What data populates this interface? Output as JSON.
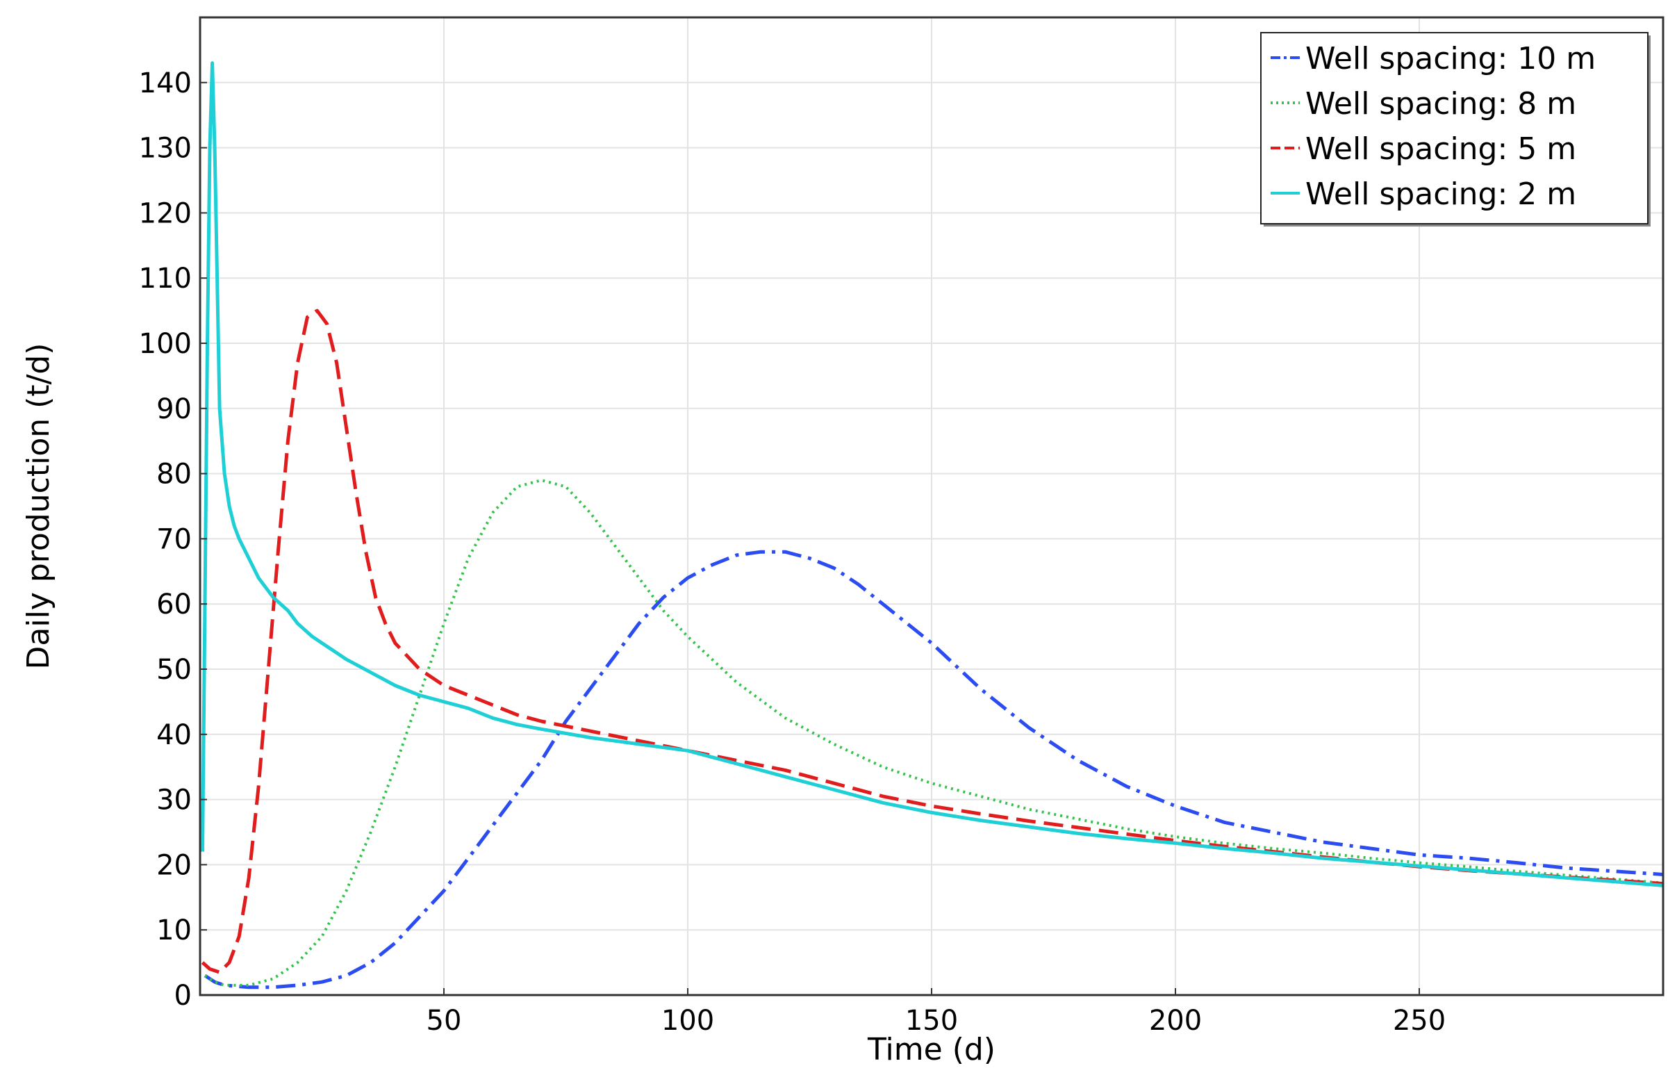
{
  "chart_data": {
    "type": "line",
    "xlabel": "Time (d)",
    "ylabel": "Daily production (t/d)",
    "xlim": [
      0,
      300
    ],
    "ylim": [
      0,
      150
    ],
    "xticks": [
      50,
      100,
      150,
      200,
      250
    ],
    "yticks": [
      0,
      10,
      20,
      30,
      40,
      50,
      60,
      70,
      80,
      90,
      100,
      110,
      120,
      130,
      140
    ],
    "grid": true,
    "legend_position": "top-right",
    "series": [
      {
        "name": "Well spacing: 10 m",
        "color": "#2b4cf0",
        "dash": "dash-dot",
        "x": [
          1,
          3,
          5,
          10,
          15,
          20,
          25,
          30,
          35,
          40,
          45,
          50,
          55,
          60,
          65,
          70,
          75,
          80,
          85,
          90,
          95,
          100,
          105,
          110,
          115,
          118,
          120,
          125,
          130,
          135,
          140,
          145,
          150,
          160,
          170,
          180,
          190,
          200,
          210,
          220,
          230,
          240,
          250,
          260,
          270,
          280,
          290,
          300
        ],
        "y": [
          3,
          2,
          1.5,
          1.2,
          1.2,
          1.5,
          2,
          3,
          5,
          8,
          12,
          16,
          21,
          26,
          31,
          36,
          42,
          47,
          52,
          57,
          61,
          64,
          66,
          67.5,
          68,
          68,
          68,
          67,
          65.5,
          63,
          60,
          57,
          54,
          47,
          41,
          36,
          32,
          29,
          26.5,
          25,
          23.5,
          22.5,
          21.5,
          21,
          20.3,
          19.5,
          19,
          18.5
        ]
      },
      {
        "name": "Well spacing: 8 m",
        "color": "#33c24a",
        "dash": "dotted",
        "x": [
          1,
          3,
          5,
          10,
          15,
          20,
          25,
          30,
          35,
          40,
          45,
          50,
          55,
          60,
          65,
          70,
          75,
          80,
          85,
          90,
          95,
          100,
          110,
          120,
          130,
          140,
          150,
          160,
          170,
          180,
          190,
          200,
          210,
          220,
          230,
          240,
          250,
          260,
          270,
          280,
          290,
          300
        ],
        "y": [
          3,
          2,
          1.5,
          1.5,
          2.5,
          5,
          9,
          16,
          25,
          35,
          46,
          57,
          67,
          74,
          78,
          79,
          78,
          74,
          69,
          64,
          59,
          55,
          48,
          42.5,
          38.5,
          35,
          32.5,
          30.5,
          28.5,
          27,
          25.5,
          24.3,
          23.3,
          22.5,
          21.8,
          21,
          20.3,
          19.7,
          19,
          18.4,
          17.8,
          17.2
        ]
      },
      {
        "name": "Well spacing: 5 m",
        "color": "#e01c1c",
        "dash": "dashed",
        "x": [
          0.5,
          2,
          4,
          6,
          8,
          10,
          12,
          14,
          16,
          18,
          20,
          22,
          24,
          26,
          28,
          30,
          32,
          34,
          36,
          38,
          40,
          45,
          50,
          55,
          60,
          65,
          70,
          80,
          90,
          100,
          110,
          120,
          130,
          140,
          150,
          160,
          170,
          180,
          190,
          200,
          210,
          220,
          230,
          240,
          250,
          260,
          270,
          280,
          290,
          300
        ],
        "y": [
          5,
          4,
          3.5,
          5,
          9,
          18,
          32,
          50,
          68,
          85,
          97,
          104,
          105,
          103,
          97,
          87,
          77,
          68,
          61,
          57,
          54,
          50,
          47.5,
          46,
          44.5,
          43,
          42,
          40.5,
          39,
          37.5,
          36,
          34.5,
          32.5,
          30.5,
          29,
          27.8,
          26.7,
          25.7,
          24.7,
          23.7,
          22.8,
          22,
          21.2,
          20.4,
          19.7,
          19.1,
          18.6,
          18.1,
          17.6,
          17.1
        ]
      },
      {
        "name": "Well spacing: 2 m",
        "color": "#1ecfd6",
        "dash": "solid",
        "x": [
          0.5,
          1,
          1.5,
          2,
          2.5,
          3,
          3.5,
          4,
          4.5,
          5,
          6,
          7,
          8,
          10,
          12,
          15,
          18,
          20,
          23,
          25,
          28,
          30,
          35,
          40,
          45,
          50,
          55,
          60,
          65,
          70,
          80,
          90,
          100,
          110,
          120,
          130,
          140,
          150,
          160,
          170,
          180,
          190,
          200,
          210,
          220,
          230,
          240,
          250,
          260,
          270,
          280,
          290,
          300
        ],
        "y": [
          22,
          60,
          100,
          130,
          143,
          130,
          110,
          90,
          85,
          80,
          75,
          72,
          70,
          67,
          64,
          61,
          59,
          57,
          55,
          54,
          52.5,
          51.5,
          49.5,
          47.5,
          46,
          45,
          44,
          42.5,
          41.5,
          40.8,
          39.5,
          38.5,
          37.5,
          35.5,
          33.5,
          31.5,
          29.5,
          28,
          26.8,
          25.8,
          24.8,
          24,
          23.3,
          22.5,
          21.8,
          21,
          20.4,
          19.8,
          19.2,
          18.6,
          18,
          17.4,
          16.8
        ]
      }
    ]
  }
}
